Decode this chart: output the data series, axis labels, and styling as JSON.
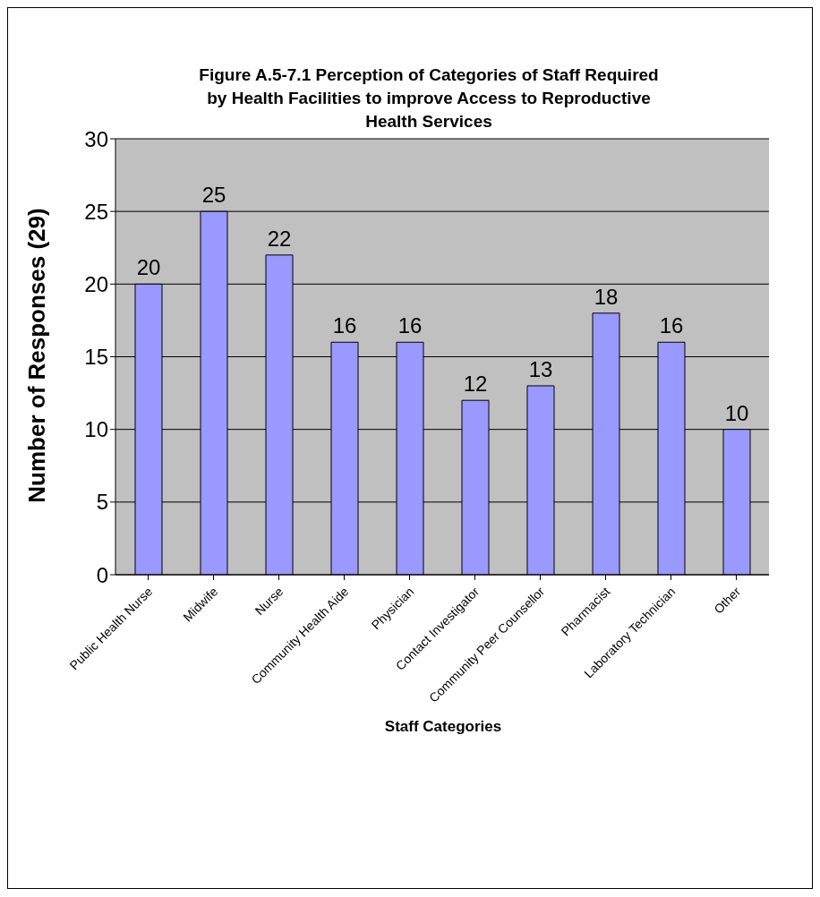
{
  "chart_data": {
    "type": "bar",
    "title": "Figure A.5-7.1 Perception of Categories of Staff Required by Health Facilities to improve Access to Reproductive Health Services",
    "xlabel": "Staff Categories",
    "ylabel": "Number of Responses (29)",
    "categories": [
      "Public Health Nurse",
      "Midwife",
      "Nurse",
      "Community Health Aide",
      "Physician",
      "Contact Investigator",
      "Community Peer Counsellor",
      "Pharmacist",
      "Laboratory Technician",
      "Other"
    ],
    "values": [
      20,
      25,
      22,
      16,
      16,
      12,
      13,
      18,
      16,
      10
    ],
    "color": "#9999ff",
    "ylim": [
      0,
      30
    ],
    "yticks": [
      0,
      5,
      10,
      15,
      20,
      25,
      30
    ],
    "grid": "y",
    "data_labels": true,
    "legend": false
  }
}
